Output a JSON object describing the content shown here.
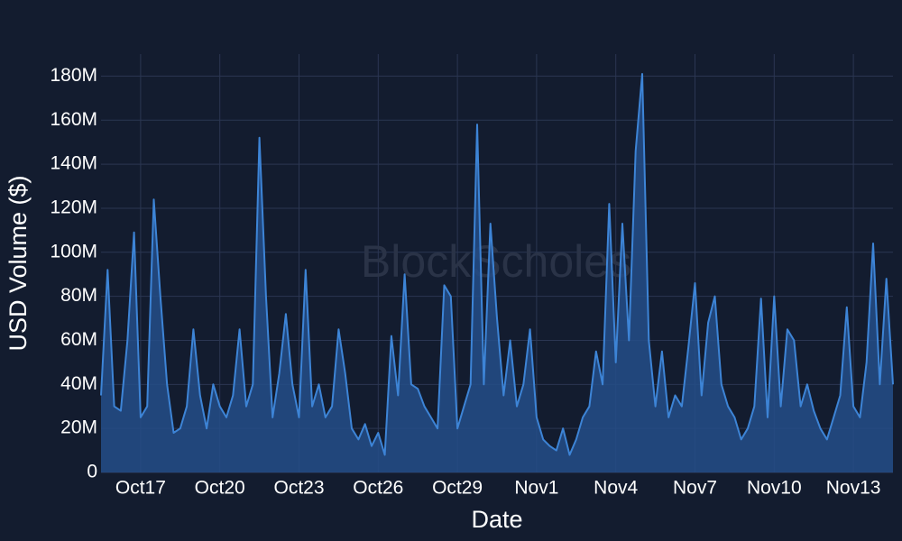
{
  "chart_data": {
    "type": "area",
    "watermark": "BlockScholes",
    "x_label": "Date",
    "y_label": "USD Volume ($)",
    "categories": [
      null,
      null,
      null,
      null,
      null,
      null,
      "Oct17",
      null,
      null,
      null,
      null,
      null,
      null,
      null,
      null,
      null,
      null,
      null,
      "Oct20",
      null,
      null,
      null,
      null,
      null,
      null,
      null,
      null,
      null,
      null,
      null,
      "Oct23",
      null,
      null,
      null,
      null,
      null,
      null,
      null,
      null,
      null,
      null,
      null,
      "Oct26",
      null,
      null,
      null,
      null,
      null,
      null,
      null,
      null,
      null,
      null,
      null,
      "Oct29",
      null,
      null,
      null,
      null,
      null,
      null,
      null,
      null,
      null,
      null,
      null,
      "Nov1",
      null,
      null,
      null,
      null,
      null,
      null,
      null,
      null,
      null,
      null,
      null,
      "Nov4",
      null,
      null,
      null,
      null,
      null,
      null,
      null,
      null,
      null,
      null,
      null,
      "Nov7",
      null,
      null,
      null,
      null,
      null,
      null,
      null,
      null,
      null,
      null,
      null,
      "Nov10",
      null,
      null,
      null,
      null,
      null,
      null,
      null,
      null,
      null,
      null,
      null,
      "Nov13",
      null,
      null,
      null,
      null,
      null,
      null
    ],
    "values": [
      35000000.0,
      92000000.0,
      30000000.0,
      28000000.0,
      60000000.0,
      109000000.0,
      25000000.0,
      30000000.0,
      124000000.0,
      80000000.0,
      40000000.0,
      18000000.0,
      20000000.0,
      30000000.0,
      65000000.0,
      35000000.0,
      20000000.0,
      40000000.0,
      30000000.0,
      25000000.0,
      35000000.0,
      65000000.0,
      30000000.0,
      40000000.0,
      152000000.0,
      80000000.0,
      25000000.0,
      45000000.0,
      72000000.0,
      40000000.0,
      25000000.0,
      92000000.0,
      30000000.0,
      40000000.0,
      25000000.0,
      30000000.0,
      65000000.0,
      45000000.0,
      20000000.0,
      15000000.0,
      22000000.0,
      12000000.0,
      18000000.0,
      8000000.0,
      62000000.0,
      35000000.0,
      90000000.0,
      40000000.0,
      38000000.0,
      30000000.0,
      25000000.0,
      20000000.0,
      85000000.0,
      80000000.0,
      20000000.0,
      30000000.0,
      40000000.0,
      158000000.0,
      40000000.0,
      113000000.0,
      70000000.0,
      35000000.0,
      60000000.0,
      30000000.0,
      40000000.0,
      65000000.0,
      25000000.0,
      15000000.0,
      12000000.0,
      10000000.0,
      20000000.0,
      8000000.0,
      15000000.0,
      25000000.0,
      30000000.0,
      55000000.0,
      40000000.0,
      122000000.0,
      50000000.0,
      113000000.0,
      60000000.0,
      146000000.0,
      181000000.0,
      60000000.0,
      30000000.0,
      55000000.0,
      25000000.0,
      35000000.0,
      30000000.0,
      57000000.0,
      86000000.0,
      35000000.0,
      68000000.0,
      80000000.0,
      40000000.0,
      30000000.0,
      25000000.0,
      15000000.0,
      20000000.0,
      30000000.0,
      79000000.0,
      25000000.0,
      80000000.0,
      30000000.0,
      65000000.0,
      60000000.0,
      30000000.0,
      40000000.0,
      28000000.0,
      20000000.0,
      15000000.0,
      25000000.0,
      35000000.0,
      75000000.0,
      30000000.0,
      25000000.0,
      50000000.0,
      104000000.0,
      40000000.0,
      88000000.0,
      40000000.0
    ],
    "color": "#3d84d6",
    "fill_color": "#254d88",
    "ylim": [
      0,
      190000000
    ],
    "yticks": [
      0,
      {
        "value": 20000000,
        "label": "20M"
      },
      {
        "value": 40000000,
        "label": "40M"
      },
      {
        "value": 60000000,
        "label": "60M"
      },
      {
        "value": 80000000,
        "label": "80M"
      },
      {
        "value": 100000000,
        "label": "100M"
      },
      {
        "value": 120000000,
        "label": "120M"
      },
      {
        "value": 140000000,
        "label": "140M"
      },
      {
        "value": 160000000,
        "label": "160M"
      },
      {
        "value": 180000000,
        "label": "180M"
      }
    ],
    "grid": true
  }
}
